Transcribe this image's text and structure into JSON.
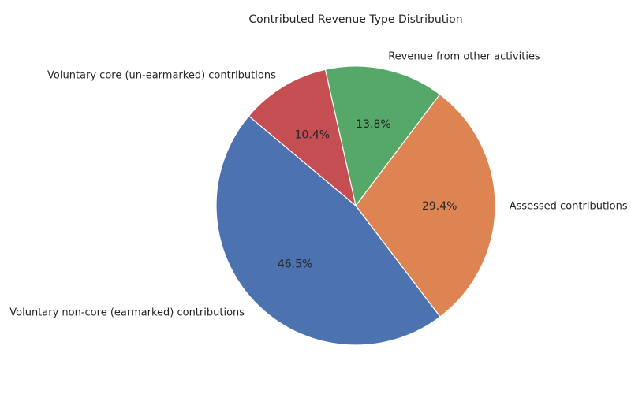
{
  "chart_data": {
    "type": "pie",
    "title": "Contributed Revenue Type Distribution",
    "slices": [
      {
        "label": "Voluntary non-core (earmarked) contributions",
        "value": 46.5,
        "pct_label": "46.5%",
        "color": "#4c72b0"
      },
      {
        "label": "Assessed contributions",
        "value": 29.4,
        "pct_label": "29.4%",
        "color": "#dd8452"
      },
      {
        "label": "Revenue from other activities",
        "value": 13.8,
        "pct_label": "13.8%",
        "color": "#55a868"
      },
      {
        "label": "Voluntary core (un-earmarked) contributions",
        "value": 10.4,
        "pct_label": "10.4%",
        "color": "#c44e52"
      }
    ],
    "start_angle_deg": 140,
    "direction": "counterclockwise",
    "legend": "none"
  }
}
